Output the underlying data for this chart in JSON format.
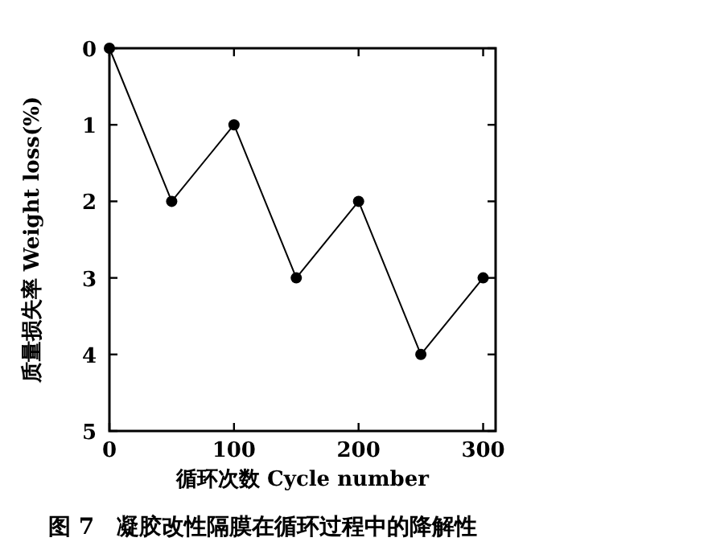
{
  "chart_data": {
    "type": "line",
    "title": "图 7　凝胶改性隔膜在循环过程中的降解性",
    "xlabel": "循环次数 Cycle number",
    "ylabel": "质量损失率 Weight loss(%)",
    "x": [
      0,
      50,
      100,
      150,
      200,
      250,
      300
    ],
    "series": [
      {
        "color": "#000000",
        "values": [
          0,
          2,
          1,
          3,
          2,
          4,
          3
        ]
      }
    ],
    "xlim": [
      0,
      310
    ],
    "ylim": [
      5,
      0
    ],
    "xticks": [
      0,
      100,
      200,
      300
    ],
    "yticks": [
      0,
      1,
      2,
      3,
      4,
      5
    ],
    "marker": "circle",
    "line_style": "solid"
  }
}
